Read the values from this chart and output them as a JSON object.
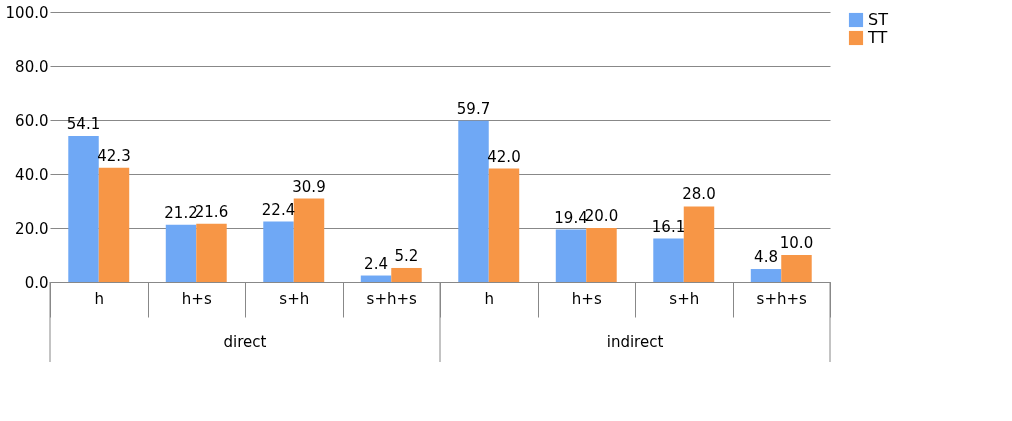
{
  "chart_data": {
    "type": "bar",
    "categories": [
      "h",
      "h+s",
      "s+h",
      "s+h+s",
      "h",
      "h+s",
      "s+h",
      "s+h+s"
    ],
    "annotations": [
      "direct",
      "indirect"
    ],
    "series": [
      {
        "name": "ST",
        "color": "#6fa8f5",
        "values": [
          54.1,
          21.2,
          22.4,
          2.4,
          59.7,
          19.4,
          16.1,
          4.8
        ],
        "value_labels": [
          "54.1",
          "21.2",
          "22.4",
          "2.4",
          "59.7",
          "19.4",
          "16.1",
          "4.8"
        ]
      },
      {
        "name": "TT",
        "color": "#f79646",
        "values": [
          42.3,
          21.6,
          30.9,
          5.2,
          42.0,
          20.0,
          28.0,
          10.0
        ],
        "value_labels": [
          "42.3",
          "21.6",
          "30.9",
          "5.2",
          "42.0",
          "20.0",
          "28.0",
          "10.0"
        ]
      }
    ],
    "ylim": [
      0,
      100
    ],
    "yticks": [
      {
        "value": 0,
        "label": "0.0"
      },
      {
        "value": 20,
        "label": "20.0"
      },
      {
        "value": 40,
        "label": "40.0"
      },
      {
        "value": 60,
        "label": "60.0"
      },
      {
        "value": 80,
        "label": "80.0"
      },
      {
        "value": 100,
        "label": "100.0"
      }
    ],
    "grid": "y",
    "legend": "right"
  }
}
